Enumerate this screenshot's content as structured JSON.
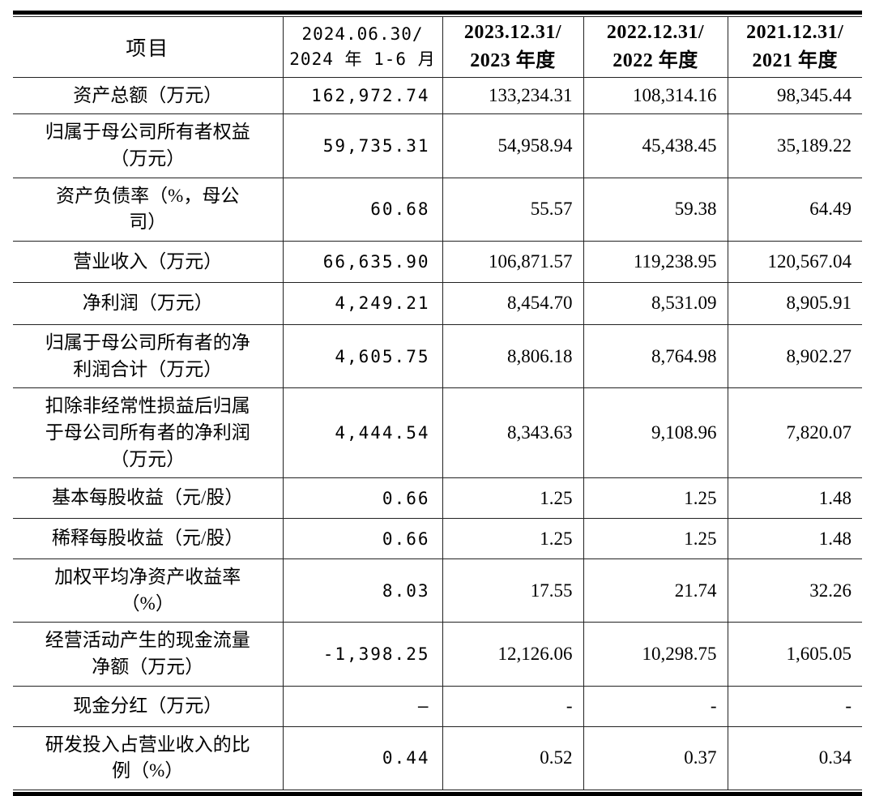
{
  "table": {
    "header": {
      "item_label": "项目",
      "periods": [
        {
          "line1": "2024.06.30/",
          "line2": "2024 年 1-6 月"
        },
        {
          "line1": "2023.12.31/",
          "line2": "2023 年度"
        },
        {
          "line1": "2022.12.31/",
          "line2": "2022 年度"
        },
        {
          "line1": "2021.12.31/",
          "line2": "2021 年度"
        }
      ]
    },
    "rows": [
      {
        "label_lines": [
          "资产总额（万元）"
        ],
        "values": [
          "162,972.74",
          "133,234.31",
          "108,314.16",
          "98,345.44"
        ]
      },
      {
        "label_lines": [
          "归属于母公司所有者权益",
          "（万元）"
        ],
        "values": [
          "59,735.31",
          "54,958.94",
          "45,438.45",
          "35,189.22"
        ]
      },
      {
        "label_lines": [
          "资产负债率（%，母公",
          "司）"
        ],
        "values": [
          "60.68",
          "55.57",
          "59.38",
          "64.49"
        ]
      },
      {
        "label_lines": [
          "营业收入（万元）"
        ],
        "values": [
          "66,635.90",
          "106,871.57",
          "119,238.95",
          "120,567.04"
        ]
      },
      {
        "label_lines": [
          "净利润（万元）"
        ],
        "values": [
          "4,249.21",
          "8,454.70",
          "8,531.09",
          "8,905.91"
        ]
      },
      {
        "label_lines": [
          "归属于母公司所有者的净",
          "利润合计（万元）"
        ],
        "values": [
          "4,605.75",
          "8,806.18",
          "8,764.98",
          "8,902.27"
        ]
      },
      {
        "label_lines": [
          "扣除非经常性损益后归属",
          "于母公司所有者的净利润",
          "（万元）"
        ],
        "values": [
          "4,444.54",
          "8,343.63",
          "9,108.96",
          "7,820.07"
        ]
      },
      {
        "label_lines": [
          "基本每股收益（元/股）"
        ],
        "values": [
          "0.66",
          "1.25",
          "1.25",
          "1.48"
        ]
      },
      {
        "label_lines": [
          "稀释每股收益（元/股）"
        ],
        "values": [
          "0.66",
          "1.25",
          "1.25",
          "1.48"
        ]
      },
      {
        "label_lines": [
          "加权平均净资产收益率",
          "（%）"
        ],
        "values": [
          "8.03",
          "17.55",
          "21.74",
          "32.26"
        ]
      },
      {
        "label_lines": [
          "经营活动产生的现金流量",
          "净额（万元）"
        ],
        "values": [
          "-1,398.25",
          "12,126.06",
          "10,298.75",
          "1,605.05"
        ]
      },
      {
        "label_lines": [
          "现金分红（万元）"
        ],
        "values": [
          "–",
          "-",
          "-",
          "-"
        ]
      },
      {
        "label_lines": [
          "研发投入占营业收入的比",
          "例（%）"
        ],
        "values": [
          "0.44",
          "0.52",
          "0.37",
          "0.34"
        ]
      }
    ]
  },
  "style_tokens": {
    "rule_color": "#000000",
    "grid_color": "#222222",
    "background": "#ffffff",
    "text_color": "#000000"
  }
}
